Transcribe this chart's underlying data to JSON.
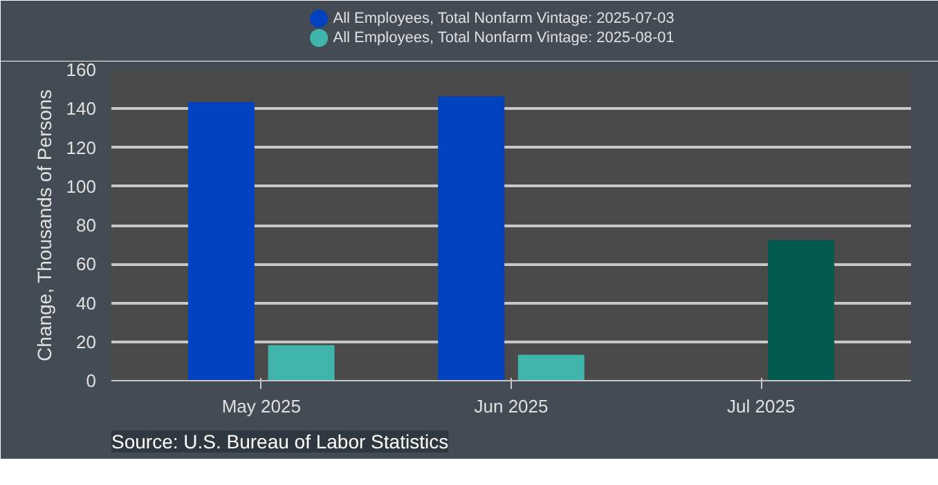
{
  "chart_data": {
    "type": "bar",
    "categories": [
      "May 2025",
      "Jun 2025",
      "Jul 2025"
    ],
    "series": [
      {
        "name": "All Employees, Total Nonfarm Vintage: 2025-07-03",
        "color": "#0041c0",
        "values": [
          143,
          146,
          null
        ]
      },
      {
        "name": "All Employees, Total Nonfarm Vintage: 2025-08-01",
        "color": "#40b5ab",
        "colors": [
          null,
          null,
          "#005a4e"
        ],
        "values": [
          18,
          13,
          72
        ]
      }
    ],
    "ylabel": "Change, Thousands of Persons",
    "ylim": [
      0,
      160
    ],
    "yticks": [
      0,
      20,
      40,
      60,
      80,
      100,
      120,
      140,
      160
    ],
    "grid": "y",
    "legend": "top",
    "annotations": [
      "Source: U.S. Bureau of Labor Statistics"
    ]
  }
}
